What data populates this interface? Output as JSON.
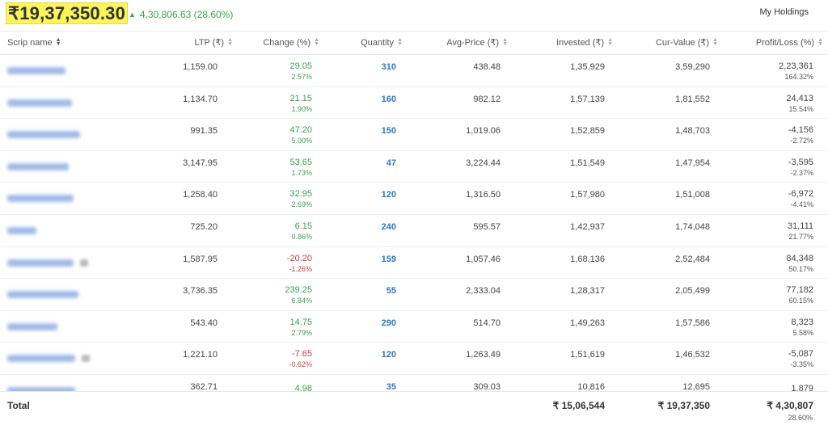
{
  "header": {
    "current_value": "₹19,37,350.30",
    "day_change_icon": "triangle-up-icon",
    "day_change": "4,30,806.63 (28.60%)",
    "holdings_menu_label": "My Holdings"
  },
  "columns": {
    "scrip": "Scrip name",
    "ltp": "LTP (₹)",
    "change": "Change (%)",
    "quantity": "Quantity",
    "avg_price": "Avg-Price (₹)",
    "invested": "Invested (₹)",
    "cur_value": "Cur-Value (₹)",
    "pnl": "Profit/Loss (%)"
  },
  "colors": {
    "positive": "#3aa34d",
    "negative": "#d83b3b",
    "quantity": "#2f78c4",
    "highlight": "#fbf55a"
  },
  "rows": [
    {
      "ltp": "1,159.00",
      "change": "29.05",
      "change_pct": "2.57%",
      "dir": "pos",
      "qty": "310",
      "avg": "438.48",
      "invested": "1,35,929",
      "cur": "3,59,290",
      "pl": "2,23,361",
      "pl_pct": "164.32%"
    },
    {
      "ltp": "1,134.70",
      "change": "21.15",
      "change_pct": "1.90%",
      "dir": "pos",
      "qty": "160",
      "avg": "982.12",
      "invested": "1,57,139",
      "cur": "1,81,552",
      "pl": "24,413",
      "pl_pct": "15.54%"
    },
    {
      "ltp": "991.35",
      "change": "47.20",
      "change_pct": "5.00%",
      "dir": "pos",
      "qty": "150",
      "avg": "1,019.06",
      "invested": "1,52,859",
      "cur": "1,48,703",
      "pl": "-4,156",
      "pl_pct": "-2.72%"
    },
    {
      "ltp": "3,147.95",
      "change": "53.65",
      "change_pct": "1.73%",
      "dir": "pos",
      "qty": "47",
      "avg": "3,224.44",
      "invested": "1,51,549",
      "cur": "1,47,954",
      "pl": "-3,595",
      "pl_pct": "-2.37%"
    },
    {
      "ltp": "1,258.40",
      "change": "32.95",
      "change_pct": "2.69%",
      "dir": "pos",
      "qty": "120",
      "avg": "1,316.50",
      "invested": "1,57,980",
      "cur": "1,51,008",
      "pl": "-6,972",
      "pl_pct": "-4.41%"
    },
    {
      "ltp": "725.20",
      "change": "6.15",
      "change_pct": "0.86%",
      "dir": "pos",
      "qty": "240",
      "avg": "595.57",
      "invested": "1,42,937",
      "cur": "1,74,048",
      "pl": "31,111",
      "pl_pct": "21.77%"
    },
    {
      "ltp": "1,587.95",
      "change": "-20.20",
      "change_pct": "-1.26%",
      "dir": "neg",
      "qty": "159",
      "avg": "1,057.46",
      "invested": "1,68,136",
      "cur": "2,52,484",
      "pl": "84,348",
      "pl_pct": "50.17%"
    },
    {
      "ltp": "3,736.35",
      "change": "239.25",
      "change_pct": "6.84%",
      "dir": "pos",
      "qty": "55",
      "avg": "2,333.04",
      "invested": "1,28,317",
      "cur": "2,05,499",
      "pl": "77,182",
      "pl_pct": "60.15%"
    },
    {
      "ltp": "543.40",
      "change": "14.75",
      "change_pct": "2.79%",
      "dir": "pos",
      "qty": "290",
      "avg": "514.70",
      "invested": "1,49,263",
      "cur": "1,57,586",
      "pl": "8,323",
      "pl_pct": "5.58%"
    },
    {
      "ltp": "1,221.10",
      "change": "-7.65",
      "change_pct": "-0.62%",
      "dir": "neg",
      "qty": "120",
      "avg": "1,263.49",
      "invested": "1,51,619",
      "cur": "1,46,532",
      "pl": "-5,087",
      "pl_pct": "-3.35%"
    },
    {
      "ltp": "362.71",
      "change": "4.98",
      "change_pct": "",
      "dir": "pos",
      "qty": "35",
      "avg": "309.03",
      "invested": "10,816",
      "cur": "12,695",
      "pl": "1,879",
      "pl_pct": ""
    }
  ],
  "footer": {
    "label": "Total",
    "invested": "₹ 15,06,544",
    "cur_value": "₹ 19,37,350",
    "pnl": "₹ 4,30,807",
    "pnl_pct": "28.60%"
  }
}
